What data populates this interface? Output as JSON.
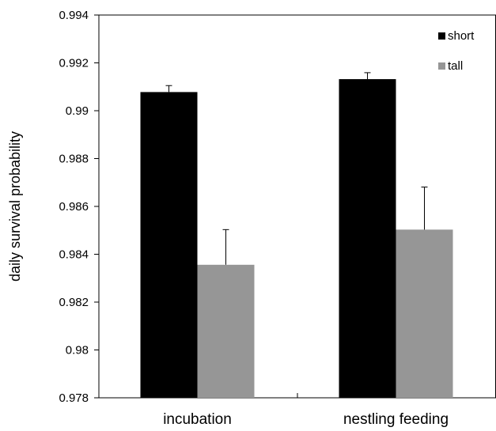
{
  "chart_data": {
    "type": "bar",
    "categories": [
      "incubation",
      "nestling feeding"
    ],
    "series": [
      {
        "name": "short",
        "color": "#000000",
        "values": [
          0.99078,
          0.99132
        ],
        "errors": [
          0.00027,
          0.00027
        ]
      },
      {
        "name": "tall",
        "color": "#969696",
        "values": [
          0.98356,
          0.98503
        ],
        "errors": [
          0.00147,
          0.00178
        ]
      }
    ],
    "xlabel": "",
    "ylabel": "daily survival probability",
    "ylim": [
      0.978,
      0.994
    ],
    "yticks": [
      "0.978",
      "0.98",
      "0.982",
      "0.984",
      "0.986",
      "0.988",
      "0.99",
      "0.992",
      "0.994"
    ],
    "grid": false,
    "legend_position": "top-right"
  }
}
